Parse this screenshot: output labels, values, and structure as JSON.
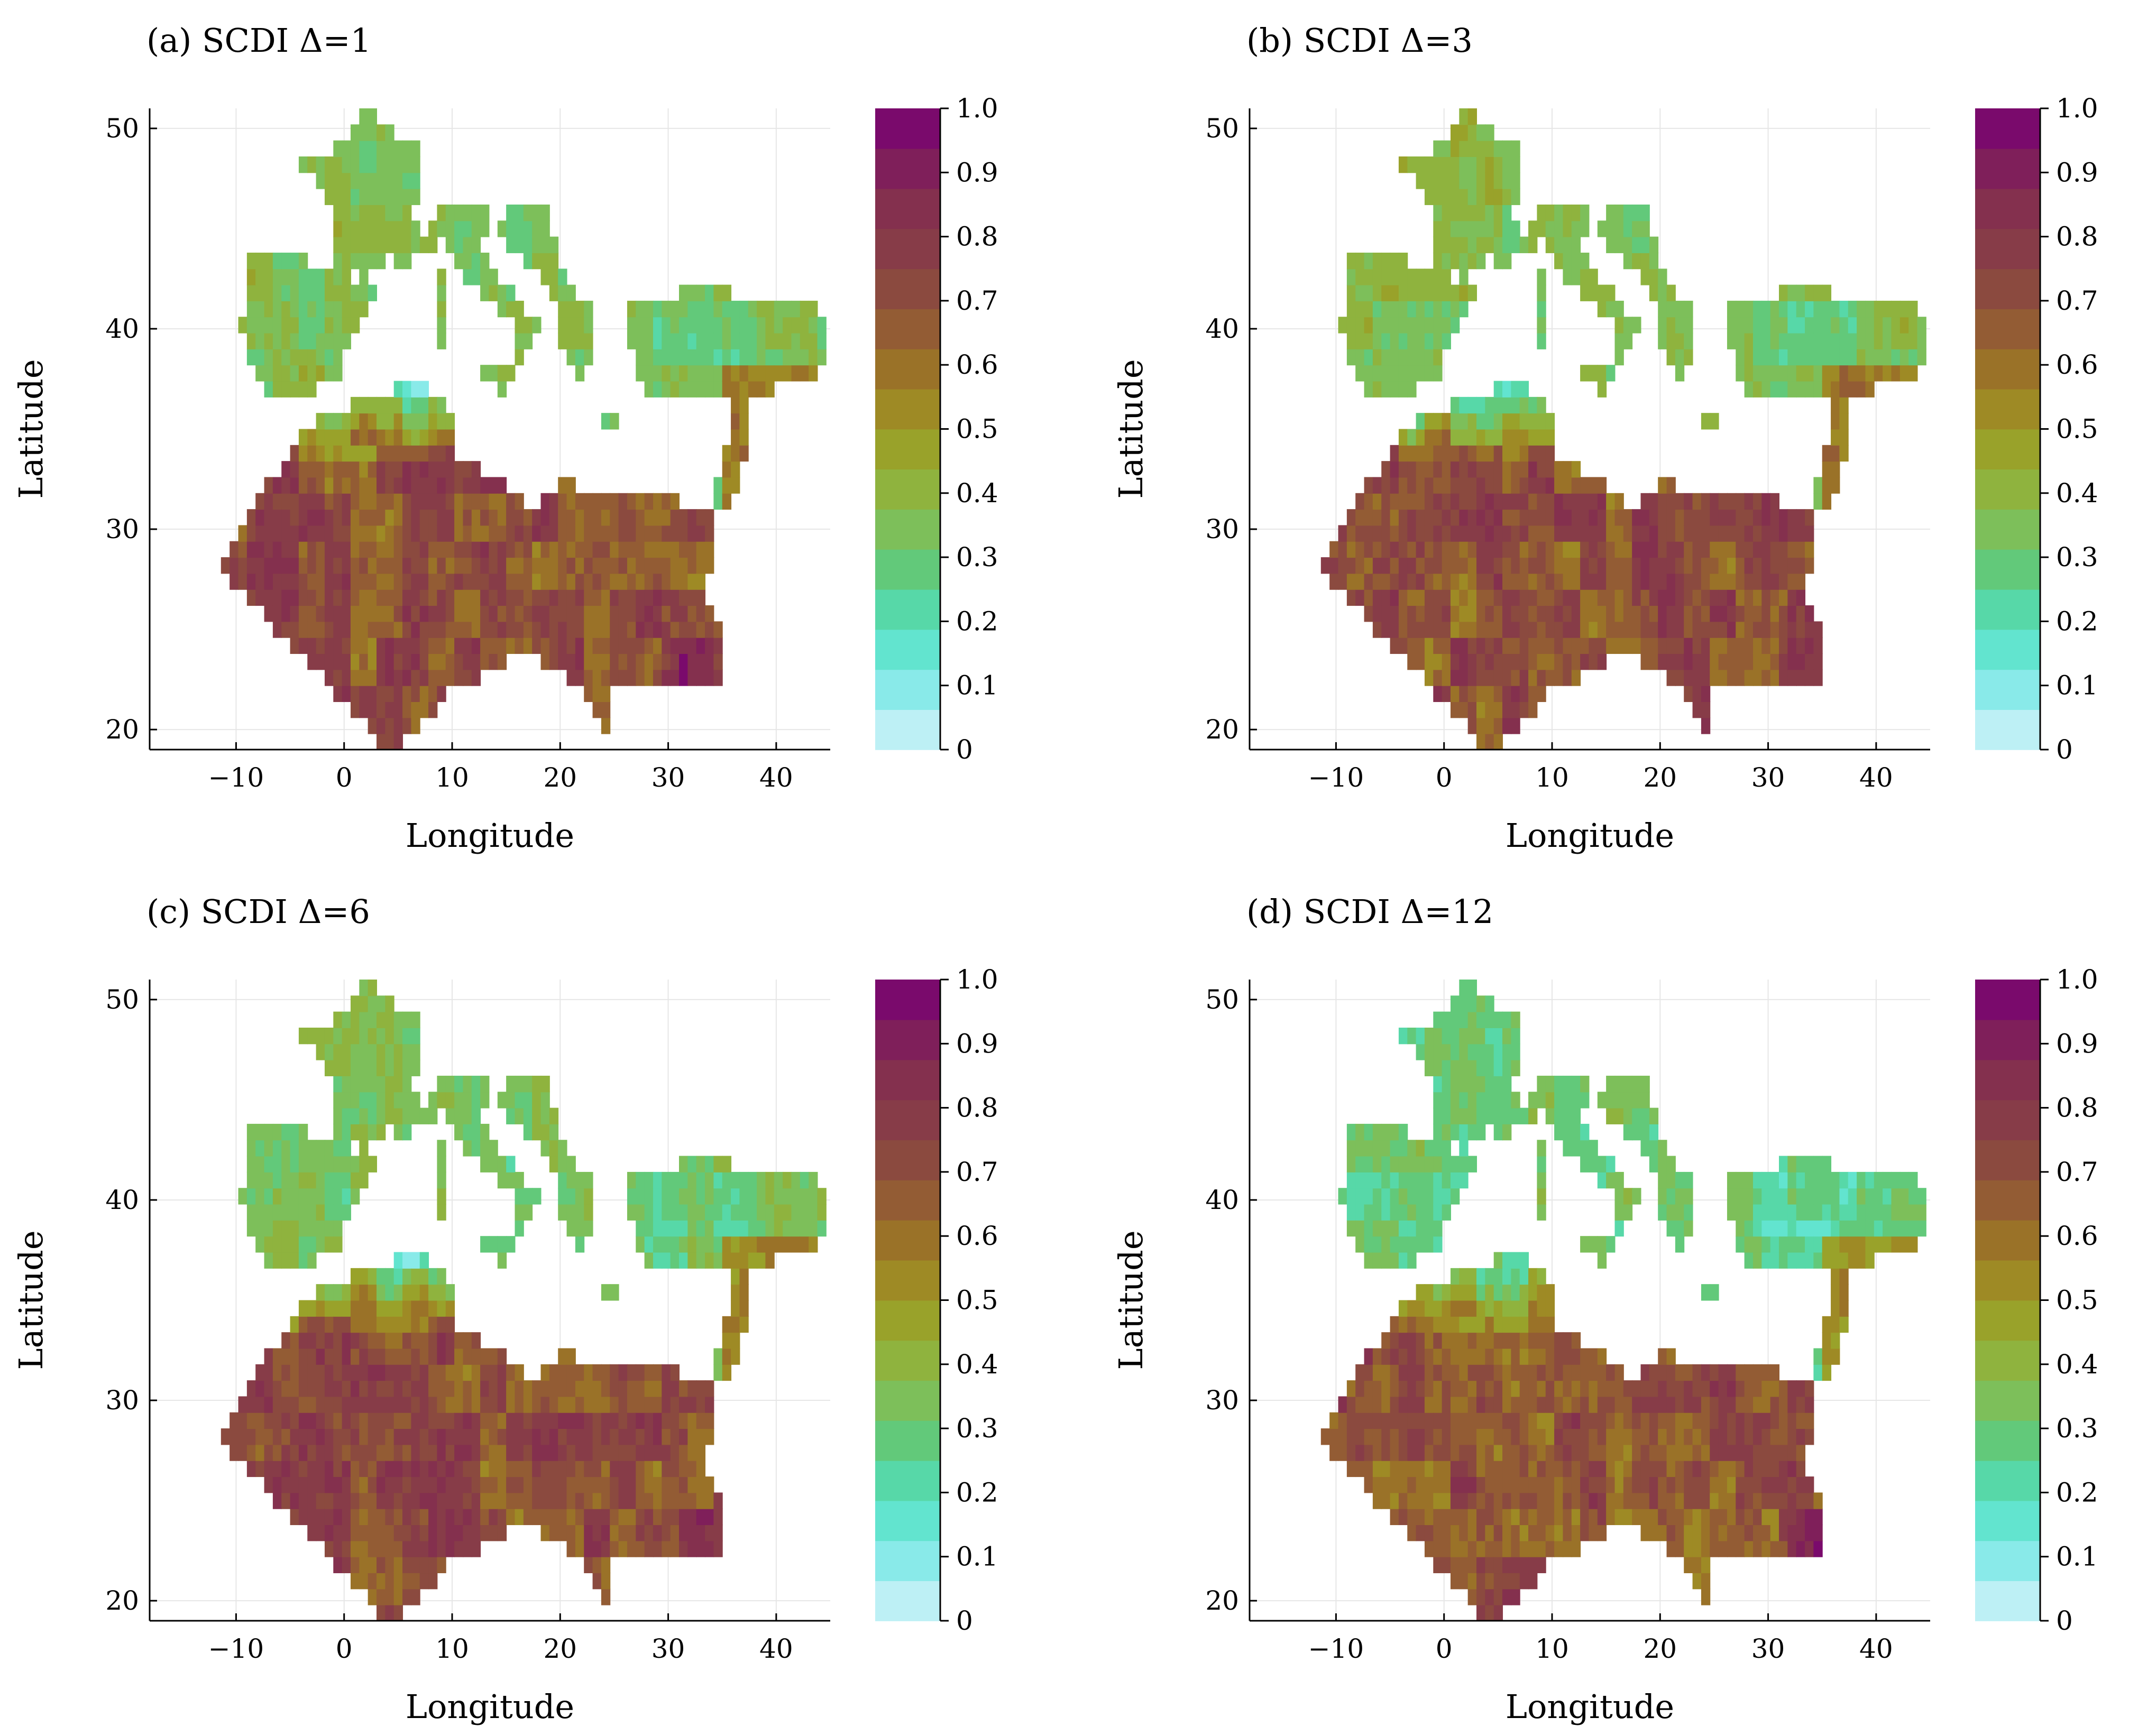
{
  "chart_data": [
    {
      "type": "heatmap",
      "title": "(a) SCDI Δ=1",
      "xlabel": "Longitude",
      "ylabel": "Latitude",
      "xlim": [
        -18,
        45
      ],
      "ylim": [
        19,
        51
      ],
      "xticks": [
        "−10",
        "0",
        "10",
        "20",
        "30",
        "40"
      ],
      "yticks": [
        "20",
        "30",
        "40",
        "50"
      ],
      "grid": true,
      "colorbar": {
        "ticks": [
          "0",
          "0.1",
          "0.2",
          "0.3",
          "0.4",
          "0.5",
          "0.6",
          "0.7",
          "0.8",
          "0.9",
          "1.0"
        ],
        "range": [
          0,
          1
        ],
        "levels": 20
      },
      "north_mean": 0.35,
      "south_mean": 0.7
    },
    {
      "type": "heatmap",
      "title": "(b) SCDI Δ=3",
      "xlabel": "Longitude",
      "ylabel": "Latitude",
      "xlim": [
        -18,
        45
      ],
      "ylim": [
        19,
        51
      ],
      "xticks": [
        "−10",
        "0",
        "10",
        "20",
        "30",
        "40"
      ],
      "yticks": [
        "20",
        "30",
        "40",
        "50"
      ],
      "grid": true,
      "colorbar": {
        "ticks": [
          "0",
          "0.1",
          "0.2",
          "0.3",
          "0.4",
          "0.5",
          "0.6",
          "0.7",
          "0.8",
          "0.9",
          "1.0"
        ],
        "range": [
          0,
          1
        ],
        "levels": 20
      },
      "north_mean": 0.37,
      "south_mean": 0.7
    },
    {
      "type": "heatmap",
      "title": "(c) SCDI Δ=6",
      "xlabel": "Longitude",
      "ylabel": "Latitude",
      "xlim": [
        -18,
        45
      ],
      "ylim": [
        19,
        51
      ],
      "xticks": [
        "−10",
        "0",
        "10",
        "20",
        "30",
        "40"
      ],
      "yticks": [
        "20",
        "30",
        "40",
        "50"
      ],
      "grid": true,
      "colorbar": {
        "ticks": [
          "0",
          "0.1",
          "0.2",
          "0.3",
          "0.4",
          "0.5",
          "0.6",
          "0.7",
          "0.8",
          "0.9",
          "1.0"
        ],
        "range": [
          0,
          1
        ],
        "levels": 20
      },
      "north_mean": 0.34,
      "south_mean": 0.72
    },
    {
      "type": "heatmap",
      "title": "(d) SCDI Δ=12",
      "xlabel": "Longitude",
      "ylabel": "Latitude",
      "xlim": [
        -18,
        45
      ],
      "ylim": [
        19,
        51
      ],
      "xticks": [
        "−10",
        "0",
        "10",
        "20",
        "30",
        "40"
      ],
      "yticks": [
        "20",
        "30",
        "40",
        "50"
      ],
      "grid": true,
      "colorbar": {
        "ticks": [
          "0",
          "0.1",
          "0.2",
          "0.3",
          "0.4",
          "0.5",
          "0.6",
          "0.7",
          "0.8",
          "0.9",
          "1.0"
        ],
        "range": [
          0,
          1
        ],
        "levels": 20
      },
      "north_mean": 0.3,
      "south_mean": 0.68
    }
  ],
  "colormap": [
    "#bdf0f5",
    "#89eae9",
    "#62e4cf",
    "#57d8a8",
    "#62c97a",
    "#7dbf5a",
    "#8fb33e",
    "#99a22a",
    "#9e8a25",
    "#9a7228",
    "#935c34",
    "#8b4a3f",
    "#873c48",
    "#84304e",
    "#7f1f5a",
    "#7a0a6c"
  ]
}
